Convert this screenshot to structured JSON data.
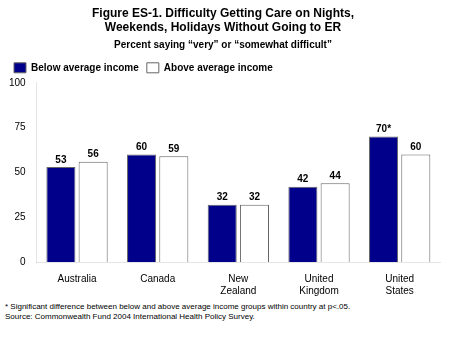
{
  "chart_data": {
    "type": "bar",
    "title": "Figure ES-1. Difficulty Getting Care on Nights,\nWeekends, Holidays Without Going to ER",
    "subtitle": "Percent saying “very” or “somewhat difficult”",
    "categories": [
      "Australia",
      "Canada",
      "New\nZealand",
      "United\nKingdom",
      "United\nStates"
    ],
    "series": [
      {
        "name": "Below average income",
        "color": "#00008B",
        "values": [
          53,
          60,
          32,
          42,
          70
        ],
        "value_labels": [
          "53",
          "60",
          "32",
          "42",
          "70*"
        ]
      },
      {
        "name": "Above average income",
        "color": "#FFFFFF",
        "values": [
          56,
          59,
          32,
          44,
          60
        ]
      }
    ],
    "ylim": [
      0,
      100
    ],
    "yticks": [
      0,
      25,
      50,
      75,
      100
    ],
    "grid": false,
    "legend": "upper left",
    "data_labels": true,
    "footnote": "* Significant difference between below and above average income groups within country at p<.05.\nSource: Commonwealth Fund 2004 International Health Policy Survey."
  }
}
